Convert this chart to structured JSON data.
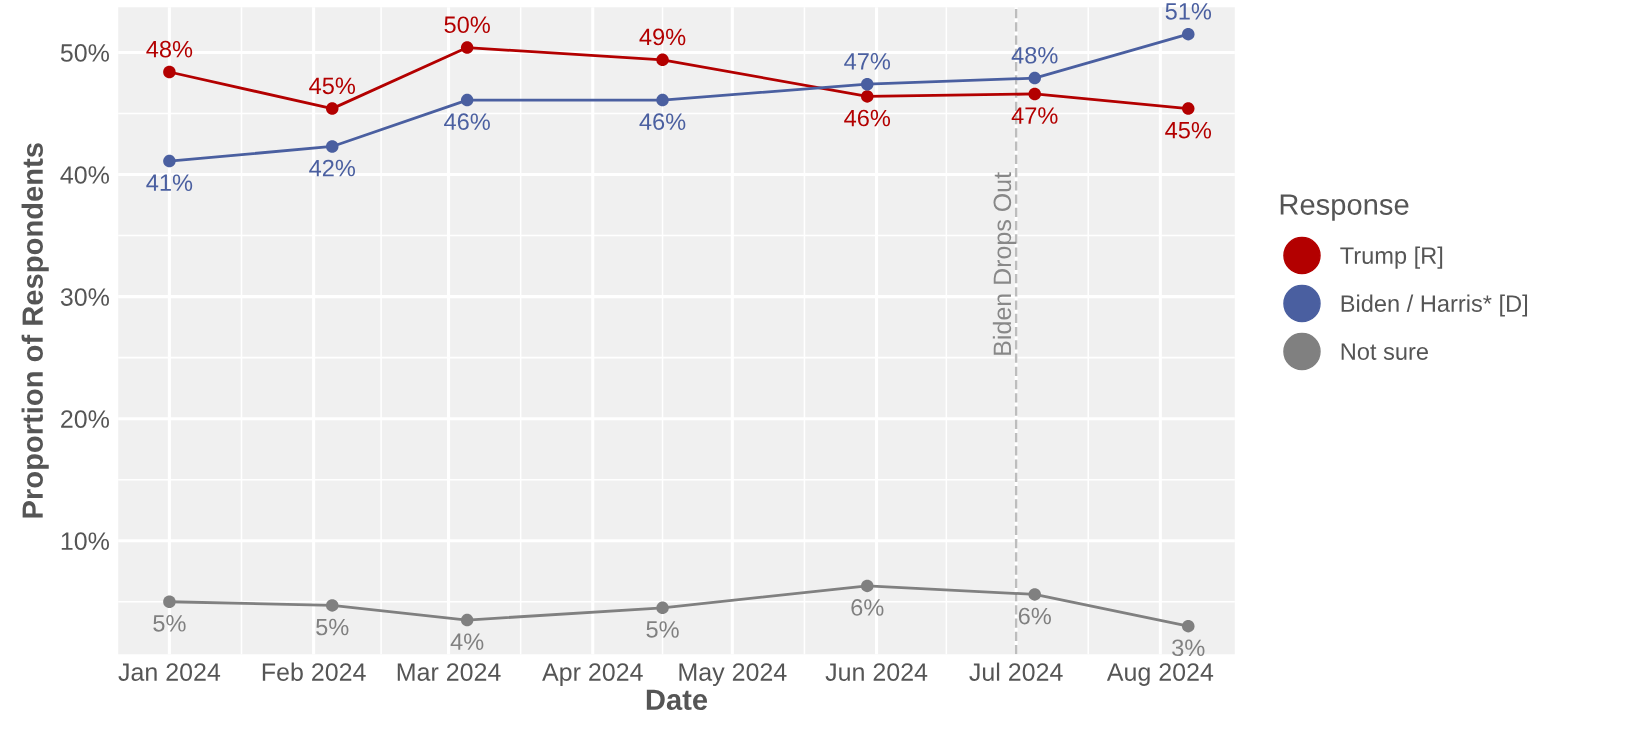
{
  "chart_data": {
    "type": "line",
    "xlabel": "Date",
    "ylabel": "Proportion of Respondents",
    "legend_title": "Response",
    "x": [
      "2024-01-01",
      "2024-02-05",
      "2024-03-05",
      "2024-04-16",
      "2024-05-30",
      "2024-07-05",
      "2024-08-07"
    ],
    "series": [
      {
        "name": "Trump [R]",
        "color": "#b30000",
        "values": [
          48.4,
          45.4,
          50.4,
          49.4,
          46.4,
          46.6,
          45.4
        ],
        "value_labels": [
          "48%",
          "45%",
          "50%",
          "49%",
          "46%",
          "47%",
          "45%"
        ]
      },
      {
        "name": "Biden / Harris* [D]",
        "color": "#4a5fa0",
        "values": [
          41.1,
          42.3,
          46.1,
          46.1,
          47.4,
          47.9,
          51.5
        ],
        "value_labels": [
          "41%",
          "42%",
          "46%",
          "46%",
          "47%",
          "48%",
          "51%"
        ]
      },
      {
        "name": "Not sure",
        "color": "#808080",
        "values": [
          5.0,
          4.7,
          3.5,
          4.5,
          6.3,
          5.6,
          3.0
        ],
        "value_labels": [
          "5%",
          "5%",
          "4%",
          "5%",
          "6%",
          "6%",
          "3%"
        ]
      }
    ],
    "xlim": [
      "2023-12-21",
      "2024-08-17"
    ],
    "xticks": [
      {
        "value": "2024-01-01",
        "label": "Jan 2024"
      },
      {
        "value": "2024-02-01",
        "label": "Feb 2024"
      },
      {
        "value": "2024-03-01",
        "label": "Mar 2024"
      },
      {
        "value": "2024-04-01",
        "label": "Apr 2024"
      },
      {
        "value": "2024-05-01",
        "label": "May 2024"
      },
      {
        "value": "2024-06-01",
        "label": "Jun 2024"
      },
      {
        "value": "2024-07-01",
        "label": "Jul 2024"
      },
      {
        "value": "2024-08-01",
        "label": "Aug 2024"
      }
    ],
    "ylim": [
      0.7,
      53.7
    ],
    "yticks": [
      {
        "value": 10,
        "label": "10%"
      },
      {
        "value": 20,
        "label": "20%"
      },
      {
        "value": 30,
        "label": "30%"
      },
      {
        "value": 40,
        "label": "40%"
      },
      {
        "value": 50,
        "label": "50%"
      }
    ],
    "ref_lines": [
      {
        "axis": "x",
        "value": "2024-07-01",
        "label": "Biden Drops Out",
        "color": "#bdbdbd",
        "line_style": "dashed"
      }
    ],
    "grid": true,
    "legend": "right",
    "marker": "circle",
    "line_style": "solid"
  }
}
